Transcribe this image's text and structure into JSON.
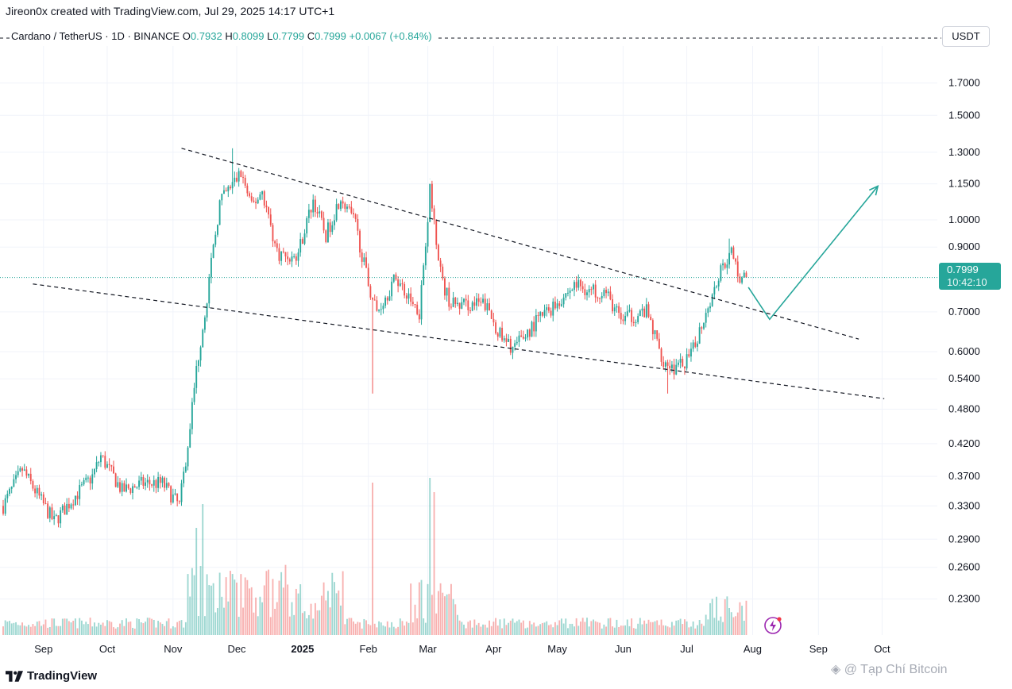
{
  "header": {
    "attribution": "Jireon0x created with TradingView.com, Jul 29, 2025 14:17 UTC+1"
  },
  "legend": {
    "symbol": "Cardano / TetherUS · 1D · BINANCE",
    "o_label": "O",
    "o_value": "0.7932",
    "h_label": "H",
    "h_value": "0.8099",
    "l_label": "L",
    "l_value": "0.7799",
    "c_label": "C",
    "c_value": "0.7999",
    "change": "+0.0067 (+0.84%)"
  },
  "currency": "USDT",
  "price_tag": {
    "price": "0.7999",
    "countdown": "10:42:10"
  },
  "footer": {
    "brand": "TradingView",
    "watermark": "@ Tạp Chí Bitcoin"
  },
  "icons": {
    "logo": "tradingview-logo-icon",
    "alert": "lightning-alert-icon",
    "watermark": "binance-diamond-icon"
  },
  "colors": {
    "up": "#26a69a",
    "down": "#ef5350",
    "trendline": "#131722",
    "projection": "#26a69a"
  },
  "chart_data": {
    "type": "candlestick",
    "symbol": "ADA/USDT",
    "interval": "1D",
    "exchange": "BINANCE",
    "y_scale": "log",
    "ylim": [
      0.2,
      1.95
    ],
    "y_ticks": [
      1.7,
      1.5,
      1.3,
      1.15,
      1.0,
      0.9,
      0.7,
      0.6,
      0.54,
      0.48,
      0.42,
      0.37,
      0.33,
      0.29,
      0.26,
      0.23
    ],
    "y_tick_labels": [
      "1.7000",
      "1.5000",
      "1.3000",
      "1.1500",
      "1.0000",
      "0.9000",
      "0.7000",
      "0.6000",
      "0.5400",
      "0.4800",
      "0.4200",
      "0.3700",
      "0.3300",
      "0.2900",
      "0.2600",
      "0.2300"
    ],
    "x_tick_labels": [
      "Sep",
      "Oct",
      "Nov",
      "Dec",
      "2025",
      "Feb",
      "Mar",
      "Apr",
      "May",
      "Jun",
      "Jul",
      "Aug",
      "Sep",
      "Oct"
    ],
    "x_tick_dates": [
      "2024-09-01",
      "2024-10-01",
      "2024-11-01",
      "2024-12-01",
      "2025-01-01",
      "2025-02-01",
      "2025-03-01",
      "2025-04-01",
      "2025-05-01",
      "2025-06-01",
      "2025-07-01",
      "2025-08-01",
      "2025-09-01",
      "2025-10-01"
    ],
    "x_range": [
      "2024-08-13",
      "2025-10-27"
    ],
    "current_price": 0.7999,
    "price_path": [
      [
        "2024-08-13",
        0.33
      ],
      [
        "2024-08-22",
        0.38
      ],
      [
        "2024-08-28",
        0.35
      ],
      [
        "2024-09-06",
        0.31
      ],
      [
        "2024-09-15",
        0.34
      ],
      [
        "2024-09-24",
        0.37
      ],
      [
        "2024-09-28",
        0.4
      ],
      [
        "2024-10-08",
        0.35
      ],
      [
        "2024-10-18",
        0.36
      ],
      [
        "2024-10-27",
        0.36
      ],
      [
        "2024-11-04",
        0.33
      ],
      [
        "2024-11-08",
        0.42
      ],
      [
        "2024-11-12",
        0.56
      ],
      [
        "2024-11-16",
        0.7
      ],
      [
        "2024-11-23",
        1.07
      ],
      [
        "2024-12-03",
        1.2
      ],
      [
        "2024-12-08",
        1.05
      ],
      [
        "2024-12-13",
        1.12
      ],
      [
        "2024-12-20",
        0.88
      ],
      [
        "2024-12-29",
        0.86
      ],
      [
        "2025-01-06",
        1.08
      ],
      [
        "2025-01-12",
        0.94
      ],
      [
        "2025-01-19",
        1.1
      ],
      [
        "2025-01-26",
        0.98
      ],
      [
        "2025-02-01",
        0.78
      ],
      [
        "2025-02-05",
        0.7
      ],
      [
        "2025-02-14",
        0.8
      ],
      [
        "2025-02-25",
        0.7
      ],
      [
        "2025-03-02",
        1.12
      ],
      [
        "2025-03-08",
        0.78
      ],
      [
        "2025-03-12",
        0.72
      ],
      [
        "2025-03-20",
        0.72
      ],
      [
        "2025-03-28",
        0.72
      ],
      [
        "2025-04-06",
        0.62
      ],
      [
        "2025-04-11",
        0.61
      ],
      [
        "2025-04-22",
        0.68
      ],
      [
        "2025-04-28",
        0.71
      ],
      [
        "2025-05-10",
        0.78
      ],
      [
        "2025-05-16",
        0.76
      ],
      [
        "2025-05-23",
        0.76
      ],
      [
        "2025-05-31",
        0.68
      ],
      [
        "2025-06-12",
        0.7
      ],
      [
        "2025-06-20",
        0.58
      ],
      [
        "2025-06-26",
        0.56
      ],
      [
        "2025-07-03",
        0.59
      ],
      [
        "2025-07-11",
        0.72
      ],
      [
        "2025-07-18",
        0.84
      ],
      [
        "2025-07-22",
        0.88
      ],
      [
        "2025-07-26",
        0.8
      ],
      [
        "2025-07-29",
        0.7999
      ]
    ],
    "spikes": [
      [
        "2025-02-03",
        0.51
      ],
      [
        "2025-03-02",
        1.17
      ],
      [
        "2024-11-29",
        1.32
      ],
      [
        "2025-07-21",
        0.93
      ],
      [
        "2025-06-22",
        0.51
      ]
    ],
    "trendlines": [
      {
        "from": [
          "2024-11-05",
          1.32
        ],
        "to": [
          "2025-09-20",
          0.63
        ]
      },
      {
        "from": [
          "2024-08-27",
          0.78
        ],
        "to": [
          "2025-10-02",
          0.5
        ]
      }
    ],
    "projection": [
      [
        "2025-07-30",
        0.77
      ],
      [
        "2025-08-09",
        0.68
      ],
      [
        "2025-09-29",
        1.14
      ]
    ],
    "volume_spikes": [
      [
        "2024-11-12",
        0.45
      ],
      [
        "2024-11-15",
        0.55
      ],
      [
        "2025-02-03",
        0.64
      ],
      [
        "2025-03-02",
        0.66
      ],
      [
        "2025-03-04",
        0.6
      ]
    ]
  }
}
